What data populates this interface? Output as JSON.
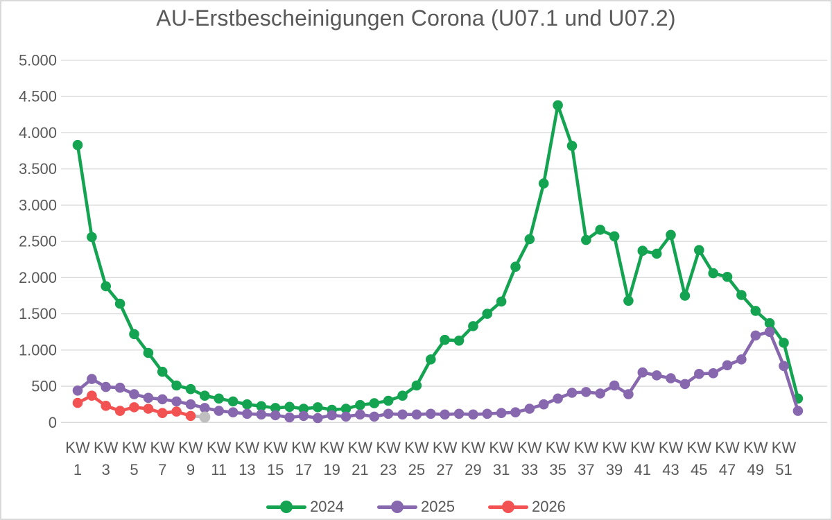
{
  "title": "AU-Erstbescheinigungen Corona (U07.1 und U07.2)",
  "text_color": "#595959",
  "grid_color": "#D9D9D9",
  "chart_data": {
    "type": "line",
    "title": "AU-Erstbescheinigungen Corona (U07.1 und U07.2)",
    "x_unit_label": "KW",
    "x_tick_numbers": [
      1,
      3,
      5,
      7,
      9,
      11,
      13,
      15,
      17,
      19,
      21,
      23,
      25,
      27,
      29,
      31,
      33,
      35,
      37,
      39,
      41,
      43,
      45,
      47,
      49,
      51
    ],
    "x_weeks": 52,
    "ylim": [
      0,
      5000
    ],
    "y_tick_step": 500,
    "y_tick_labels": [
      "0",
      "500",
      "1.000",
      "1.500",
      "2.000",
      "2.500",
      "3.000",
      "3.500",
      "4.000",
      "4.500",
      "5.000"
    ],
    "grid": true,
    "legend_position": "bottom",
    "series": [
      {
        "name": "2024",
        "color": "#14A351",
        "start_week": 1,
        "values": [
          3830,
          2560,
          1880,
          1640,
          1220,
          960,
          700,
          510,
          460,
          370,
          330,
          290,
          250,
          225,
          200,
          215,
          190,
          210,
          175,
          190,
          240,
          265,
          300,
          370,
          510,
          870,
          1140,
          1130,
          1330,
          1500,
          1670,
          2150,
          2530,
          3300,
          4380,
          3820,
          2520,
          2660,
          2570,
          1680,
          2370,
          2330,
          2590,
          1750,
          2380,
          2060,
          2010,
          1760,
          1540,
          1370,
          1100,
          330
        ]
      },
      {
        "name": "2025",
        "color": "#8767AE",
        "start_week": 1,
        "values": [
          440,
          600,
          490,
          480,
          390,
          340,
          320,
          290,
          250,
          200,
          160,
          140,
          120,
          110,
          100,
          70,
          90,
          60,
          100,
          80,
          110,
          80,
          120,
          110,
          110,
          120,
          110,
          120,
          110,
          120,
          130,
          140,
          190,
          250,
          330,
          410,
          420,
          400,
          510,
          390,
          690,
          650,
          610,
          530,
          670,
          680,
          790,
          870,
          1200,
          1250,
          780,
          160
        ]
      },
      {
        "name": "2026",
        "color": "#F25252",
        "start_week": 1,
        "values": [
          270,
          370,
          230,
          160,
          210,
          190,
          130,
          150,
          90
        ]
      }
    ],
    "provisional_point": {
      "series": "2026",
      "week": 10,
      "value": 75,
      "color": "#BFBFBF"
    }
  }
}
